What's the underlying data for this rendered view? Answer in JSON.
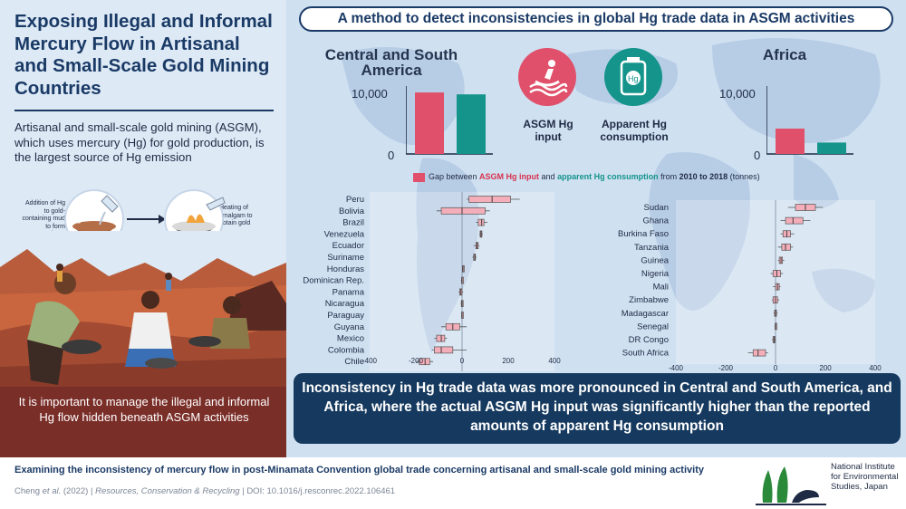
{
  "left": {
    "title": "Exposing Illegal and Informal Mercury Flow in Artisanal and Small-Scale Gold Mining Countries",
    "intro": "Artisanal and small-scale gold mining (ASGM), which uses mercury (Hg) for gold production, is the largest source of Hg emission",
    "step1_note": "Addition of Hg to gold-containing mud to form amalgam",
    "step2_note": "Heating of amalgam to obtain gold",
    "hg_label": "Hg",
    "message": "It is important to manage the illegal and informal Hg flow hidden beneath ASGM activities"
  },
  "right": {
    "title": "A method to detect inconsistencies in global Hg trade data in ASGM activities",
    "region_left": "Central and South America",
    "region_right": "Africa",
    "icon_left_caption": "ASGM Hg input",
    "icon_right_caption": "Apparent Hg consumption",
    "icon_right_symbol": "Hg",
    "legend": {
      "prefix": "Gap between ",
      "red": "ASGM Hg input",
      "mid": " and ",
      "teal": "apparent Hg consumption",
      "after": " from ",
      "period": "2010 to 2018",
      "unit": " (tonnes)"
    },
    "conclusion": "Inconsistency in Hg trade data was more pronounced in Central and South America, and Africa, where the actual ASGM Hg input was significantly higher than the reported amounts of apparent Hg consumption"
  },
  "chart_data": [
    {
      "type": "bar",
      "region": "Central and South America",
      "categories": [
        "ASGM Hg input",
        "Apparent Hg consumption"
      ],
      "values": [
        9700,
        9400
      ],
      "colors": [
        "#e0506a",
        "#14948a"
      ],
      "ylim": [
        0,
        10000
      ],
      "yticks": [
        "0",
        "10,000"
      ]
    },
    {
      "type": "bar",
      "region": "Africa",
      "categories": [
        "ASGM Hg input",
        "Apparent Hg consumption"
      ],
      "values": [
        4000,
        1800
      ],
      "colors": [
        "#e0506a",
        "#14948a"
      ],
      "ylim": [
        0,
        10000
      ],
      "yticks": [
        "0",
        "10,000"
      ]
    },
    {
      "type": "boxplot",
      "region": "Central and South America",
      "xlim": [
        -400,
        400
      ],
      "xticks": [
        "-400",
        "-200",
        "0",
        "200",
        "400"
      ],
      "categories": [
        "Peru",
        "Bolivia",
        "Brazil",
        "Venezuela",
        "Ecuador",
        "Suriname",
        "Honduras",
        "Dominican Rep.",
        "Panama",
        "Nicaragua",
        "Paraguay",
        "Guyana",
        "Mexico",
        "Colombia",
        "Chile"
      ],
      "boxes": [
        {
          "min": 20,
          "q1": 30,
          "median": 130,
          "q3": 210,
          "max": 250
        },
        {
          "min": -110,
          "q1": -90,
          "median": 0,
          "q3": 100,
          "max": 120
        },
        {
          "min": 60,
          "q1": 70,
          "median": 85,
          "q3": 95,
          "max": 110
        },
        {
          "min": 75,
          "q1": 78,
          "median": 82,
          "q3": 86,
          "max": 90
        },
        {
          "min": 50,
          "q1": 60,
          "median": 65,
          "q3": 70,
          "max": 75
        },
        {
          "min": 45,
          "q1": 50,
          "median": 55,
          "q3": 58,
          "max": 62
        },
        {
          "min": 0,
          "q1": 2,
          "median": 4,
          "q3": 6,
          "max": 8
        },
        {
          "min": -5,
          "q1": -2,
          "median": 0,
          "q3": 2,
          "max": 4
        },
        {
          "min": -15,
          "q1": -10,
          "median": -5,
          "q3": 0,
          "max": 5
        },
        {
          "min": -6,
          "q1": -3,
          "median": 0,
          "q3": 2,
          "max": 4
        },
        {
          "min": -4,
          "q1": -2,
          "median": 0,
          "q3": 1,
          "max": 3
        },
        {
          "min": -90,
          "q1": -70,
          "median": -40,
          "q3": -10,
          "max": 20
        },
        {
          "min": -120,
          "q1": -110,
          "median": -90,
          "q3": -75,
          "max": -65
        },
        {
          "min": -130,
          "q1": -120,
          "median": -90,
          "q3": -40,
          "max": 20
        },
        {
          "min": -200,
          "q1": -185,
          "median": -160,
          "q3": -140,
          "max": -125
        }
      ]
    },
    {
      "type": "boxplot",
      "region": "Africa",
      "xlim": [
        -400,
        400
      ],
      "xticks": [
        "-400",
        "-200",
        "0",
        "200",
        "400"
      ],
      "categories": [
        "Sudan",
        "Ghana",
        "Burkina Faso",
        "Tanzania",
        "Guinea",
        "Nigeria",
        "Mali",
        "Zimbabwe",
        "Madagascar",
        "Senegal",
        "DR Congo",
        "South Africa"
      ],
      "boxes": [
        {
          "min": 50,
          "q1": 80,
          "median": 120,
          "q3": 160,
          "max": 190
        },
        {
          "min": 20,
          "q1": 40,
          "median": 70,
          "q3": 110,
          "max": 140
        },
        {
          "min": 20,
          "q1": 30,
          "median": 45,
          "q3": 60,
          "max": 75
        },
        {
          "min": 10,
          "q1": 25,
          "median": 40,
          "q3": 60,
          "max": 70
        },
        {
          "min": 10,
          "q1": 15,
          "median": 22,
          "q3": 28,
          "max": 35
        },
        {
          "min": -20,
          "q1": -10,
          "median": 5,
          "q3": 20,
          "max": 30
        },
        {
          "min": -10,
          "q1": 0,
          "median": 8,
          "q3": 15,
          "max": 20
        },
        {
          "min": -15,
          "q1": -10,
          "median": 0,
          "q3": 8,
          "max": 15
        },
        {
          "min": -8,
          "q1": -4,
          "median": 0,
          "q3": 4,
          "max": 8
        },
        {
          "min": -4,
          "q1": -2,
          "median": 0,
          "q3": 2,
          "max": 4
        },
        {
          "min": -15,
          "q1": -10,
          "median": -6,
          "q3": -2,
          "max": 2
        },
        {
          "min": -110,
          "q1": -90,
          "median": -70,
          "q3": -40,
          "max": -30
        }
      ]
    }
  ],
  "footer": {
    "title": "Examining the inconsistency of mercury flow in post-Minamata Convention global trade concerning artisanal and small-scale gold mining activity",
    "cite_authors": "Cheng ",
    "cite_etal": "et al.",
    "cite_year": " (2022)  |  ",
    "cite_journal": "Resources, Conservation & Recycling",
    "cite_doi": "  |  DOI: 10.1016/j.resconrec.2022.106461",
    "org_name": "National Institute for Environmental Studies, Japan"
  },
  "colors": {
    "navy": "#1a3a66",
    "red": "#e0506a",
    "teal": "#14948a",
    "box_fill": "#f3aeba",
    "panel_blue": "#cfe0f1"
  }
}
